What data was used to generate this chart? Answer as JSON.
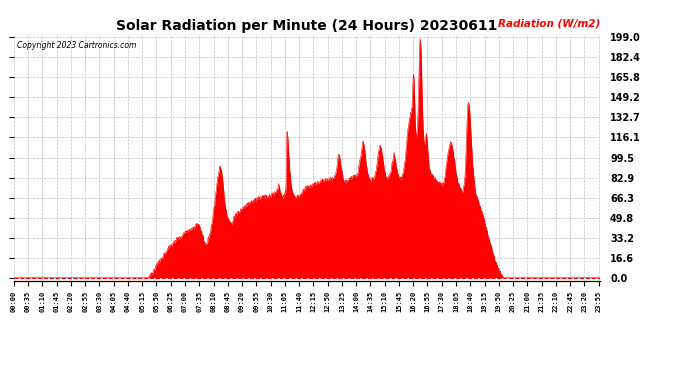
{
  "title": "Solar Radiation per Minute (24 Hours) 20230611",
  "copyright_text": "Copyright 2023 Cartronics.com",
  "ylabel": "Radiation (W/m2)",
  "ylabel_color": "#ff0000",
  "title_color": "#000000",
  "fill_color": "#ff0000",
  "line_color": "#ff0000",
  "background_color": "#ffffff",
  "grid_color": "#aaaaaa",
  "yticks": [
    0.0,
    16.6,
    33.2,
    49.8,
    66.3,
    82.9,
    99.5,
    116.1,
    132.7,
    149.2,
    165.8,
    182.4,
    199.0
  ],
  "ymax": 202,
  "ymin": -3.0
}
